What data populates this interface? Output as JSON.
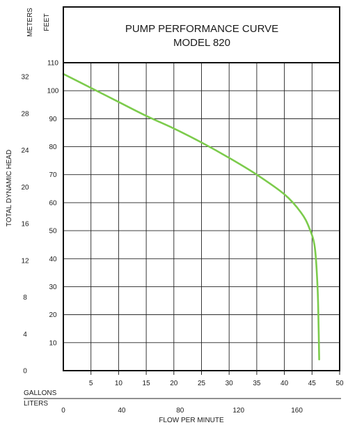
{
  "chart_data": {
    "type": "line",
    "title": "PUMP PERFORMANCE CURVE",
    "subtitle": "MODEL 820",
    "ylabel": "TOTAL DYNAMIC HEAD",
    "xlabel": "FLOW PER MINUTE",
    "y_units": [
      "METERS",
      "FEET"
    ],
    "x_units": [
      "GALLONS",
      "LITERS"
    ],
    "feet_ticks": [
      10,
      20,
      30,
      40,
      50,
      60,
      70,
      80,
      90,
      100,
      110
    ],
    "meter_ticks": [
      0,
      4,
      8,
      12,
      16,
      20,
      24,
      28,
      32
    ],
    "gallon_ticks": [
      5,
      10,
      15,
      20,
      25,
      30,
      35,
      40,
      45,
      50
    ],
    "liter_ticks": [
      0,
      40,
      80,
      120,
      160
    ],
    "xlim_gallons": [
      0,
      50
    ],
    "ylim_feet": [
      0,
      110
    ],
    "grid": true,
    "line_color": "#7ccb4c",
    "series": [
      {
        "x": [
          0,
          5,
          10,
          15,
          20,
          25,
          30,
          35,
          40,
          43,
          44.5,
          45.5,
          46,
          46.2,
          46.3
        ],
        "y": [
          106,
          101,
          96,
          91,
          86.5,
          81.5,
          76,
          70,
          63,
          56.5,
          51,
          44,
          30,
          15,
          4
        ]
      }
    ]
  }
}
